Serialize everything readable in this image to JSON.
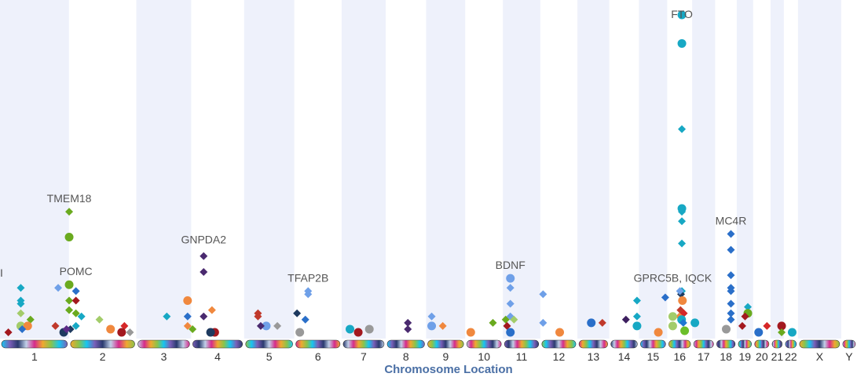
{
  "chart_data": {
    "type": "scatter",
    "xlabel": "Chromosome Location",
    "ylabel": "",
    "chromosomes": [
      "1",
      "2",
      "3",
      "4",
      "5",
      "6",
      "7",
      "8",
      "9",
      "10",
      "11",
      "12",
      "13",
      "14",
      "15",
      "16",
      "17",
      "18",
      "19",
      "20",
      "21",
      "22",
      "X",
      "Y"
    ],
    "chromosome_lengths_mb": [
      249,
      243,
      198,
      191,
      181,
      171,
      159,
      146,
      141,
      136,
      135,
      134,
      115,
      107,
      102,
      90,
      83,
      78,
      59,
      63,
      48,
      51,
      156,
      57
    ],
    "ylim": [
      0,
      100
    ],
    "grid": false,
    "annotations": [
      {
        "label": "TMEM18",
        "chr": "2",
        "pos": 0.6,
        "y": 39
      },
      {
        "label": "POMC",
        "chr": "2",
        "pos": 25,
        "y": 16
      },
      {
        "label": "GNPDA2",
        "chr": "4",
        "pos": 45,
        "y": 26
      },
      {
        "label": "TFAP2B",
        "chr": "6",
        "pos": 50,
        "y": 14
      },
      {
        "label": "BDNF",
        "chr": "11",
        "pos": 27,
        "y": 18
      },
      {
        "label": "FTO",
        "chr": "16",
        "pos": 53,
        "y": 97
      },
      {
        "label": "GPRC5B, IQCK",
        "chr": "16",
        "pos": 20,
        "y": 14
      },
      {
        "label": "MC4R",
        "chr": "18",
        "pos": 57,
        "y": 32
      }
    ],
    "points": [
      {
        "chr": "16",
        "pos": 53,
        "y": 100,
        "shape": "circle",
        "color": "#17a8c4"
      },
      {
        "chr": "16",
        "pos": 53,
        "y": 91,
        "shape": "circle",
        "color": "#17a8c4"
      },
      {
        "chr": "16",
        "pos": 53,
        "y": 64,
        "shape": "diamond",
        "color": "#17a8c4"
      },
      {
        "chr": "16",
        "pos": 53,
        "y": 39,
        "shape": "circle",
        "color": "#17a8c4"
      },
      {
        "chr": "16",
        "pos": 53,
        "y": 38,
        "shape": "diamond",
        "color": "#17a8c4"
      },
      {
        "chr": "16",
        "pos": 53,
        "y": 35,
        "shape": "diamond",
        "color": "#17a8c4"
      },
      {
        "chr": "16",
        "pos": 53,
        "y": 28,
        "shape": "diamond",
        "color": "#17a8c4"
      },
      {
        "chr": "16",
        "pos": 53,
        "y": 13,
        "shape": "diamond",
        "color": "#17a8c4"
      },
      {
        "chr": "16",
        "pos": 50,
        "y": 12,
        "shape": "diamond",
        "color": "#1e3a5f"
      },
      {
        "chr": "16",
        "pos": 46,
        "y": 13,
        "shape": "diamond",
        "color": "#6fa0e8"
      },
      {
        "chr": "16",
        "pos": 55,
        "y": 10,
        "shape": "circle",
        "color": "#f0883e"
      },
      {
        "chr": "16",
        "pos": 48,
        "y": 7,
        "shape": "diamond",
        "color": "#c0392b"
      },
      {
        "chr": "16",
        "pos": 60,
        "y": 6,
        "shape": "diamond",
        "color": "#d62728"
      },
      {
        "chr": "16",
        "pos": 44,
        "y": 5,
        "shape": "diamond",
        "color": "#f0883e"
      },
      {
        "chr": "16",
        "pos": 52,
        "y": 4,
        "shape": "circle",
        "color": "#17a8c4"
      },
      {
        "chr": "16",
        "pos": 58,
        "y": 3,
        "shape": "diamond",
        "color": "#1f77d4"
      },
      {
        "chr": "16",
        "pos": 20,
        "y": 5,
        "shape": "circle",
        "color": "#a3cc6a"
      },
      {
        "chr": "16",
        "pos": 20,
        "y": 2,
        "shape": "circle",
        "color": "#a3cc6a"
      },
      {
        "chr": "16",
        "pos": 63,
        "y": 0.5,
        "shape": "circle",
        "color": "#6bbf2a"
      },
      {
        "chr": "15",
        "pos": 95,
        "y": 11,
        "shape": "diamond",
        "color": "#2a6fc9"
      },
      {
        "chr": "15",
        "pos": 70,
        "y": 0,
        "shape": "circle",
        "color": "#f0883e"
      },
      {
        "chr": "14",
        "pos": 100,
        "y": 10,
        "shape": "diamond",
        "color": "#17a8c4"
      },
      {
        "chr": "14",
        "pos": 100,
        "y": 5,
        "shape": "diamond",
        "color": "#17a8c4"
      },
      {
        "chr": "14",
        "pos": 60,
        "y": 4,
        "shape": "diamond",
        "color": "#3d1f5f"
      },
      {
        "chr": "14",
        "pos": 100,
        "y": 2,
        "shape": "circle",
        "color": "#17a8c4"
      },
      {
        "chr": "2",
        "pos": 0.6,
        "y": 38,
        "shape": "diamond",
        "color": "#6aaa1f"
      },
      {
        "chr": "2",
        "pos": 0.6,
        "y": 30,
        "shape": "circle",
        "color": "#6aaa1f"
      },
      {
        "chr": "2",
        "pos": 0.6,
        "y": 15,
        "shape": "circle",
        "color": "#6aaa1f"
      },
      {
        "chr": "2",
        "pos": 0.6,
        "y": 10,
        "shape": "diamond",
        "color": "#6aaa1f"
      },
      {
        "chr": "2",
        "pos": 0.6,
        "y": 7,
        "shape": "diamond",
        "color": "#6aaa1f"
      },
      {
        "chr": "2",
        "pos": 25,
        "y": 13,
        "shape": "diamond",
        "color": "#2a6fc9"
      },
      {
        "chr": "2",
        "pos": 25,
        "y": 10,
        "shape": "diamond",
        "color": "#a3181f"
      },
      {
        "chr": "2",
        "pos": 25,
        "y": 6,
        "shape": "diamond",
        "color": "#6aaa1f"
      },
      {
        "chr": "2",
        "pos": 45,
        "y": 5,
        "shape": "diamond",
        "color": "#17a8c4"
      },
      {
        "chr": "2",
        "pos": 25,
        "y": 2,
        "shape": "diamond",
        "color": "#17a8c4"
      },
      {
        "chr": "2",
        "pos": 5,
        "y": 1,
        "shape": "diamond",
        "color": "#1e3a5f"
      },
      {
        "chr": "2",
        "pos": 110,
        "y": 4,
        "shape": "diamond",
        "color": "#a3cc6a"
      },
      {
        "chr": "2",
        "pos": 150,
        "y": 1,
        "shape": "circle",
        "color": "#f0883e"
      },
      {
        "chr": "2",
        "pos": 200,
        "y": 2,
        "shape": "diamond",
        "color": "#d62728"
      },
      {
        "chr": "2",
        "pos": 190,
        "y": 0,
        "shape": "circle",
        "color": "#a3181f"
      },
      {
        "chr": "2",
        "pos": 220,
        "y": 0,
        "shape": "diamond",
        "color": "#999999"
      },
      {
        "chr": "1",
        "pos": 75,
        "y": 14,
        "shape": "diamond",
        "color": "#17a8c4"
      },
      {
        "chr": "1",
        "pos": 75,
        "y": 10,
        "shape": "diamond",
        "color": "#17a8c4"
      },
      {
        "chr": "1",
        "pos": 75,
        "y": 9,
        "shape": "diamond",
        "color": "#17a8c4"
      },
      {
        "chr": "1",
        "pos": 75,
        "y": 6,
        "shape": "diamond",
        "color": "#a3cc6a"
      },
      {
        "chr": "1",
        "pos": 75,
        "y": 2,
        "shape": "circle",
        "color": "#a3cc6a"
      },
      {
        "chr": "1",
        "pos": 110,
        "y": 4,
        "shape": "diamond",
        "color": "#6aaa1f"
      },
      {
        "chr": "1",
        "pos": 100,
        "y": 2,
        "shape": "circle",
        "color": "#f0883e"
      },
      {
        "chr": "1",
        "pos": 80,
        "y": 1,
        "shape": "diamond",
        "color": "#2a6fc9"
      },
      {
        "chr": "1",
        "pos": 30,
        "y": 0,
        "shape": "diamond",
        "color": "#a3181f"
      },
      {
        "chr": "1",
        "pos": 210,
        "y": 14,
        "shape": "diamond",
        "color": "#6fa0e8"
      },
      {
        "chr": "1",
        "pos": 200,
        "y": 2,
        "shape": "diamond",
        "color": "#c0392b"
      },
      {
        "chr": "1",
        "pos": 230,
        "y": 0,
        "shape": "circle",
        "color": "#1e3a5f"
      },
      {
        "chr": "1",
        "pos": 240,
        "y": 1,
        "shape": "diamond",
        "color": "#5b2a86"
      },
      {
        "chr": "4",
        "pos": 45,
        "y": 24,
        "shape": "diamond",
        "color": "#4a2a6f"
      },
      {
        "chr": "4",
        "pos": 45,
        "y": 19,
        "shape": "diamond",
        "color": "#4a2a6f"
      },
      {
        "chr": "4",
        "pos": 45,
        "y": 5,
        "shape": "diamond",
        "color": "#4a2a6f"
      },
      {
        "chr": "3",
        "pos": 185,
        "y": 10,
        "shape": "circle",
        "color": "#f0883e"
      },
      {
        "chr": "3",
        "pos": 185,
        "y": 5,
        "shape": "diamond",
        "color": "#2a6fc9"
      },
      {
        "chr": "3",
        "pos": 185,
        "y": 2,
        "shape": "diamond",
        "color": "#f0883e"
      },
      {
        "chr": "3",
        "pos": 110,
        "y": 5,
        "shape": "diamond",
        "color": "#17a8c4"
      },
      {
        "chr": "4",
        "pos": 75,
        "y": 7,
        "shape": "diamond",
        "color": "#f0883e"
      },
      {
        "chr": "4",
        "pos": 5,
        "y": 1,
        "shape": "diamond",
        "color": "#6aaa1f"
      },
      {
        "chr": "4",
        "pos": 85,
        "y": 0,
        "shape": "circle",
        "color": "#a3181f"
      },
      {
        "chr": "4",
        "pos": 70,
        "y": 0,
        "shape": "circle",
        "color": "#1e3a5f"
      },
      {
        "chr": "6",
        "pos": 50,
        "y": 13,
        "shape": "diamond",
        "color": "#6fa0e8"
      },
      {
        "chr": "6",
        "pos": 50,
        "y": 12,
        "shape": "diamond",
        "color": "#6fa0e8"
      },
      {
        "chr": "6",
        "pos": 40,
        "y": 4,
        "shape": "diamond",
        "color": "#2a6fc9"
      },
      {
        "chr": "6",
        "pos": 10,
        "y": 6,
        "shape": "diamond",
        "color": "#1e3a5f"
      },
      {
        "chr": "5",
        "pos": 50,
        "y": 6,
        "shape": "diamond",
        "color": "#c0392b"
      },
      {
        "chr": "5",
        "pos": 50,
        "y": 5,
        "shape": "diamond",
        "color": "#c0392b"
      },
      {
        "chr": "5",
        "pos": 80,
        "y": 2,
        "shape": "circle",
        "color": "#6fa0e8"
      },
      {
        "chr": "5",
        "pos": 60,
        "y": 2,
        "shape": "diamond",
        "color": "#4a2a6f"
      },
      {
        "chr": "5",
        "pos": 120,
        "y": 2,
        "shape": "diamond",
        "color": "#999999"
      },
      {
        "chr": "11",
        "pos": 27,
        "y": 17,
        "shape": "circle",
        "color": "#6fa0e8"
      },
      {
        "chr": "11",
        "pos": 27,
        "y": 14,
        "shape": "diamond",
        "color": "#6fa0e8"
      },
      {
        "chr": "11",
        "pos": 27,
        "y": 9,
        "shape": "diamond",
        "color": "#6fa0e8"
      },
      {
        "chr": "11",
        "pos": 27,
        "y": 5,
        "shape": "diamond",
        "color": "#6fa0e8"
      },
      {
        "chr": "11",
        "pos": 10,
        "y": 4,
        "shape": "diamond",
        "color": "#6aaa1f"
      },
      {
        "chr": "11",
        "pos": 40,
        "y": 4,
        "shape": "diamond",
        "color": "#a3cc6a"
      },
      {
        "chr": "11",
        "pos": 15,
        "y": 2,
        "shape": "diamond",
        "color": "#a3181f"
      },
      {
        "chr": "11",
        "pos": 27,
        "y": 0,
        "shape": "circle",
        "color": "#2a6fc9"
      },
      {
        "chr": "12",
        "pos": 10,
        "y": 12,
        "shape": "diamond",
        "color": "#6fa0e8"
      },
      {
        "chr": "12",
        "pos": 10,
        "y": 3,
        "shape": "diamond",
        "color": "#6fa0e8"
      },
      {
        "chr": "12",
        "pos": 70,
        "y": 0,
        "shape": "circle",
        "color": "#f0883e"
      },
      {
        "chr": "9",
        "pos": 20,
        "y": 5,
        "shape": "diamond",
        "color": "#6fa0e8"
      },
      {
        "chr": "9",
        "pos": 20,
        "y": 2,
        "shape": "circle",
        "color": "#6fa0e8"
      },
      {
        "chr": "9",
        "pos": 60,
        "y": 2,
        "shape": "diamond",
        "color": "#f0883e"
      },
      {
        "chr": "8",
        "pos": 80,
        "y": 3,
        "shape": "diamond",
        "color": "#4a2a6f"
      },
      {
        "chr": "8",
        "pos": 80,
        "y": 1,
        "shape": "diamond",
        "color": "#4a2a6f"
      },
      {
        "chr": "7",
        "pos": 30,
        "y": 1,
        "shape": "circle",
        "color": "#17a8c4"
      },
      {
        "chr": "7",
        "pos": 100,
        "y": 1,
        "shape": "circle",
        "color": "#999999"
      },
      {
        "chr": "7",
        "pos": 60,
        "y": 0,
        "shape": "circle",
        "color": "#a3181f"
      },
      {
        "chr": "13",
        "pos": 50,
        "y": 3,
        "shape": "circle",
        "color": "#2a6fc9"
      },
      {
        "chr": "13",
        "pos": 90,
        "y": 3,
        "shape": "diamond",
        "color": "#c0392b"
      },
      {
        "chr": "17",
        "pos": 10,
        "y": 3,
        "shape": "circle",
        "color": "#17a8c4"
      },
      {
        "chr": "18",
        "pos": 57,
        "y": 31,
        "shape": "diamond",
        "color": "#2a6fc9"
      },
      {
        "chr": "18",
        "pos": 57,
        "y": 26,
        "shape": "diamond",
        "color": "#2a6fc9"
      },
      {
        "chr": "18",
        "pos": 57,
        "y": 18,
        "shape": "diamond",
        "color": "#2a6fc9"
      },
      {
        "chr": "18",
        "pos": 57,
        "y": 14,
        "shape": "diamond",
        "color": "#2a6fc9"
      },
      {
        "chr": "18",
        "pos": 57,
        "y": 13,
        "shape": "diamond",
        "color": "#2a6fc9"
      },
      {
        "chr": "18",
        "pos": 57,
        "y": 9,
        "shape": "diamond",
        "color": "#2a6fc9"
      },
      {
        "chr": "18",
        "pos": 57,
        "y": 6,
        "shape": "diamond",
        "color": "#2a6fc9"
      },
      {
        "chr": "18",
        "pos": 57,
        "y": 4,
        "shape": "diamond",
        "color": "#2a6fc9"
      },
      {
        "chr": "18",
        "pos": 40,
        "y": 1,
        "shape": "circle",
        "color": "#999999"
      },
      {
        "chr": "19",
        "pos": 40,
        "y": 8,
        "shape": "diamond",
        "color": "#17a8c4"
      },
      {
        "chr": "19",
        "pos": 40,
        "y": 6,
        "shape": "circle",
        "color": "#6aaa1f"
      },
      {
        "chr": "19",
        "pos": 30,
        "y": 5,
        "shape": "diamond",
        "color": "#a3181f"
      },
      {
        "chr": "19",
        "pos": 20,
        "y": 2,
        "shape": "diamond",
        "color": "#a3181f"
      },
      {
        "chr": "20",
        "pos": 20,
        "y": 0,
        "shape": "circle",
        "color": "#2a6fc9"
      },
      {
        "chr": "20",
        "pos": 50,
        "y": 2,
        "shape": "diamond",
        "color": "#d62728"
      },
      {
        "chr": "21",
        "pos": 40,
        "y": 2,
        "shape": "circle",
        "color": "#a3181f"
      },
      {
        "chr": "21",
        "pos": 40,
        "y": 0,
        "shape": "diamond",
        "color": "#6aaa1f"
      },
      {
        "chr": "22",
        "pos": 30,
        "y": 0,
        "shape": "circle",
        "color": "#17a8c4"
      },
      {
        "chr": "10",
        "pos": 100,
        "y": 3,
        "shape": "diamond",
        "color": "#6aaa1f"
      },
      {
        "chr": "10",
        "pos": 20,
        "y": 0,
        "shape": "circle",
        "color": "#f0883e"
      },
      {
        "chr": "6",
        "pos": 20,
        "y": 0,
        "shape": "circle",
        "color": "#999999"
      }
    ]
  },
  "colors": {
    "stripe": "#eef1fb",
    "ideogram_palette": [
      "#17c6f0",
      "#d62a8c",
      "#7a5fb8",
      "#f0a830",
      "#2a3a6f",
      "#8bc34a",
      "#c0d0e8"
    ]
  },
  "cutoff_label": "I"
}
